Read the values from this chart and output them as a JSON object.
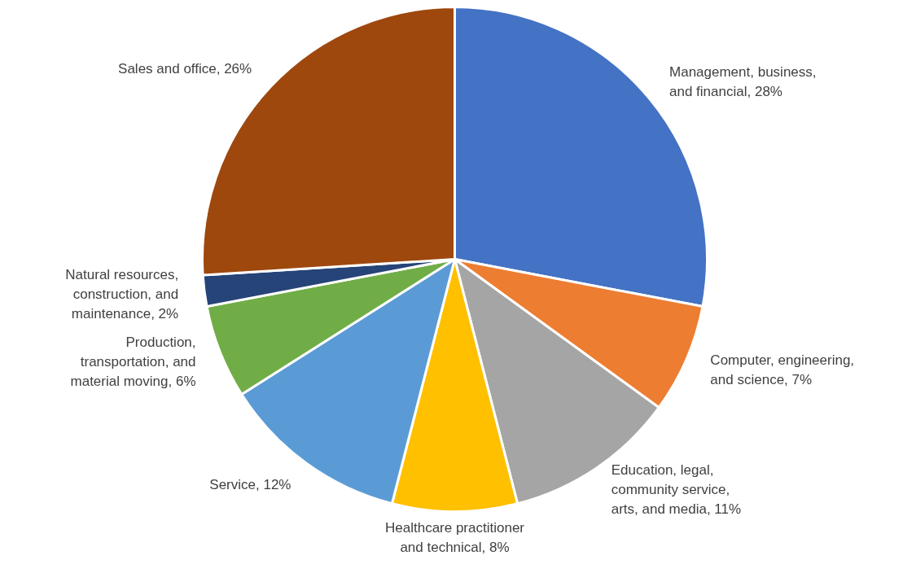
{
  "chart_data": {
    "type": "pie",
    "categories": [
      "Management, business,\nand financial",
      "Computer, engineering,\nand science",
      "Education, legal,\ncommunity service,\narts, and media",
      "Healthcare practitioner\nand technical",
      "Service",
      "Production,\ntransportation, and\nmaterial moving",
      "Natural resources,\nconstruction, and\nmaintenance",
      "Sales and office"
    ],
    "values": [
      28,
      7,
      11,
      8,
      12,
      6,
      2,
      26
    ],
    "value_labels": [
      "28%",
      "7%",
      "11%",
      "8%",
      "12%",
      "6%",
      "2%",
      "26%"
    ],
    "colors": [
      "#4472c4",
      "#ed7d31",
      "#a5a5a5",
      "#ffc000",
      "#5b9bd5",
      "#70ad47",
      "#264478",
      "#9e480e"
    ]
  }
}
